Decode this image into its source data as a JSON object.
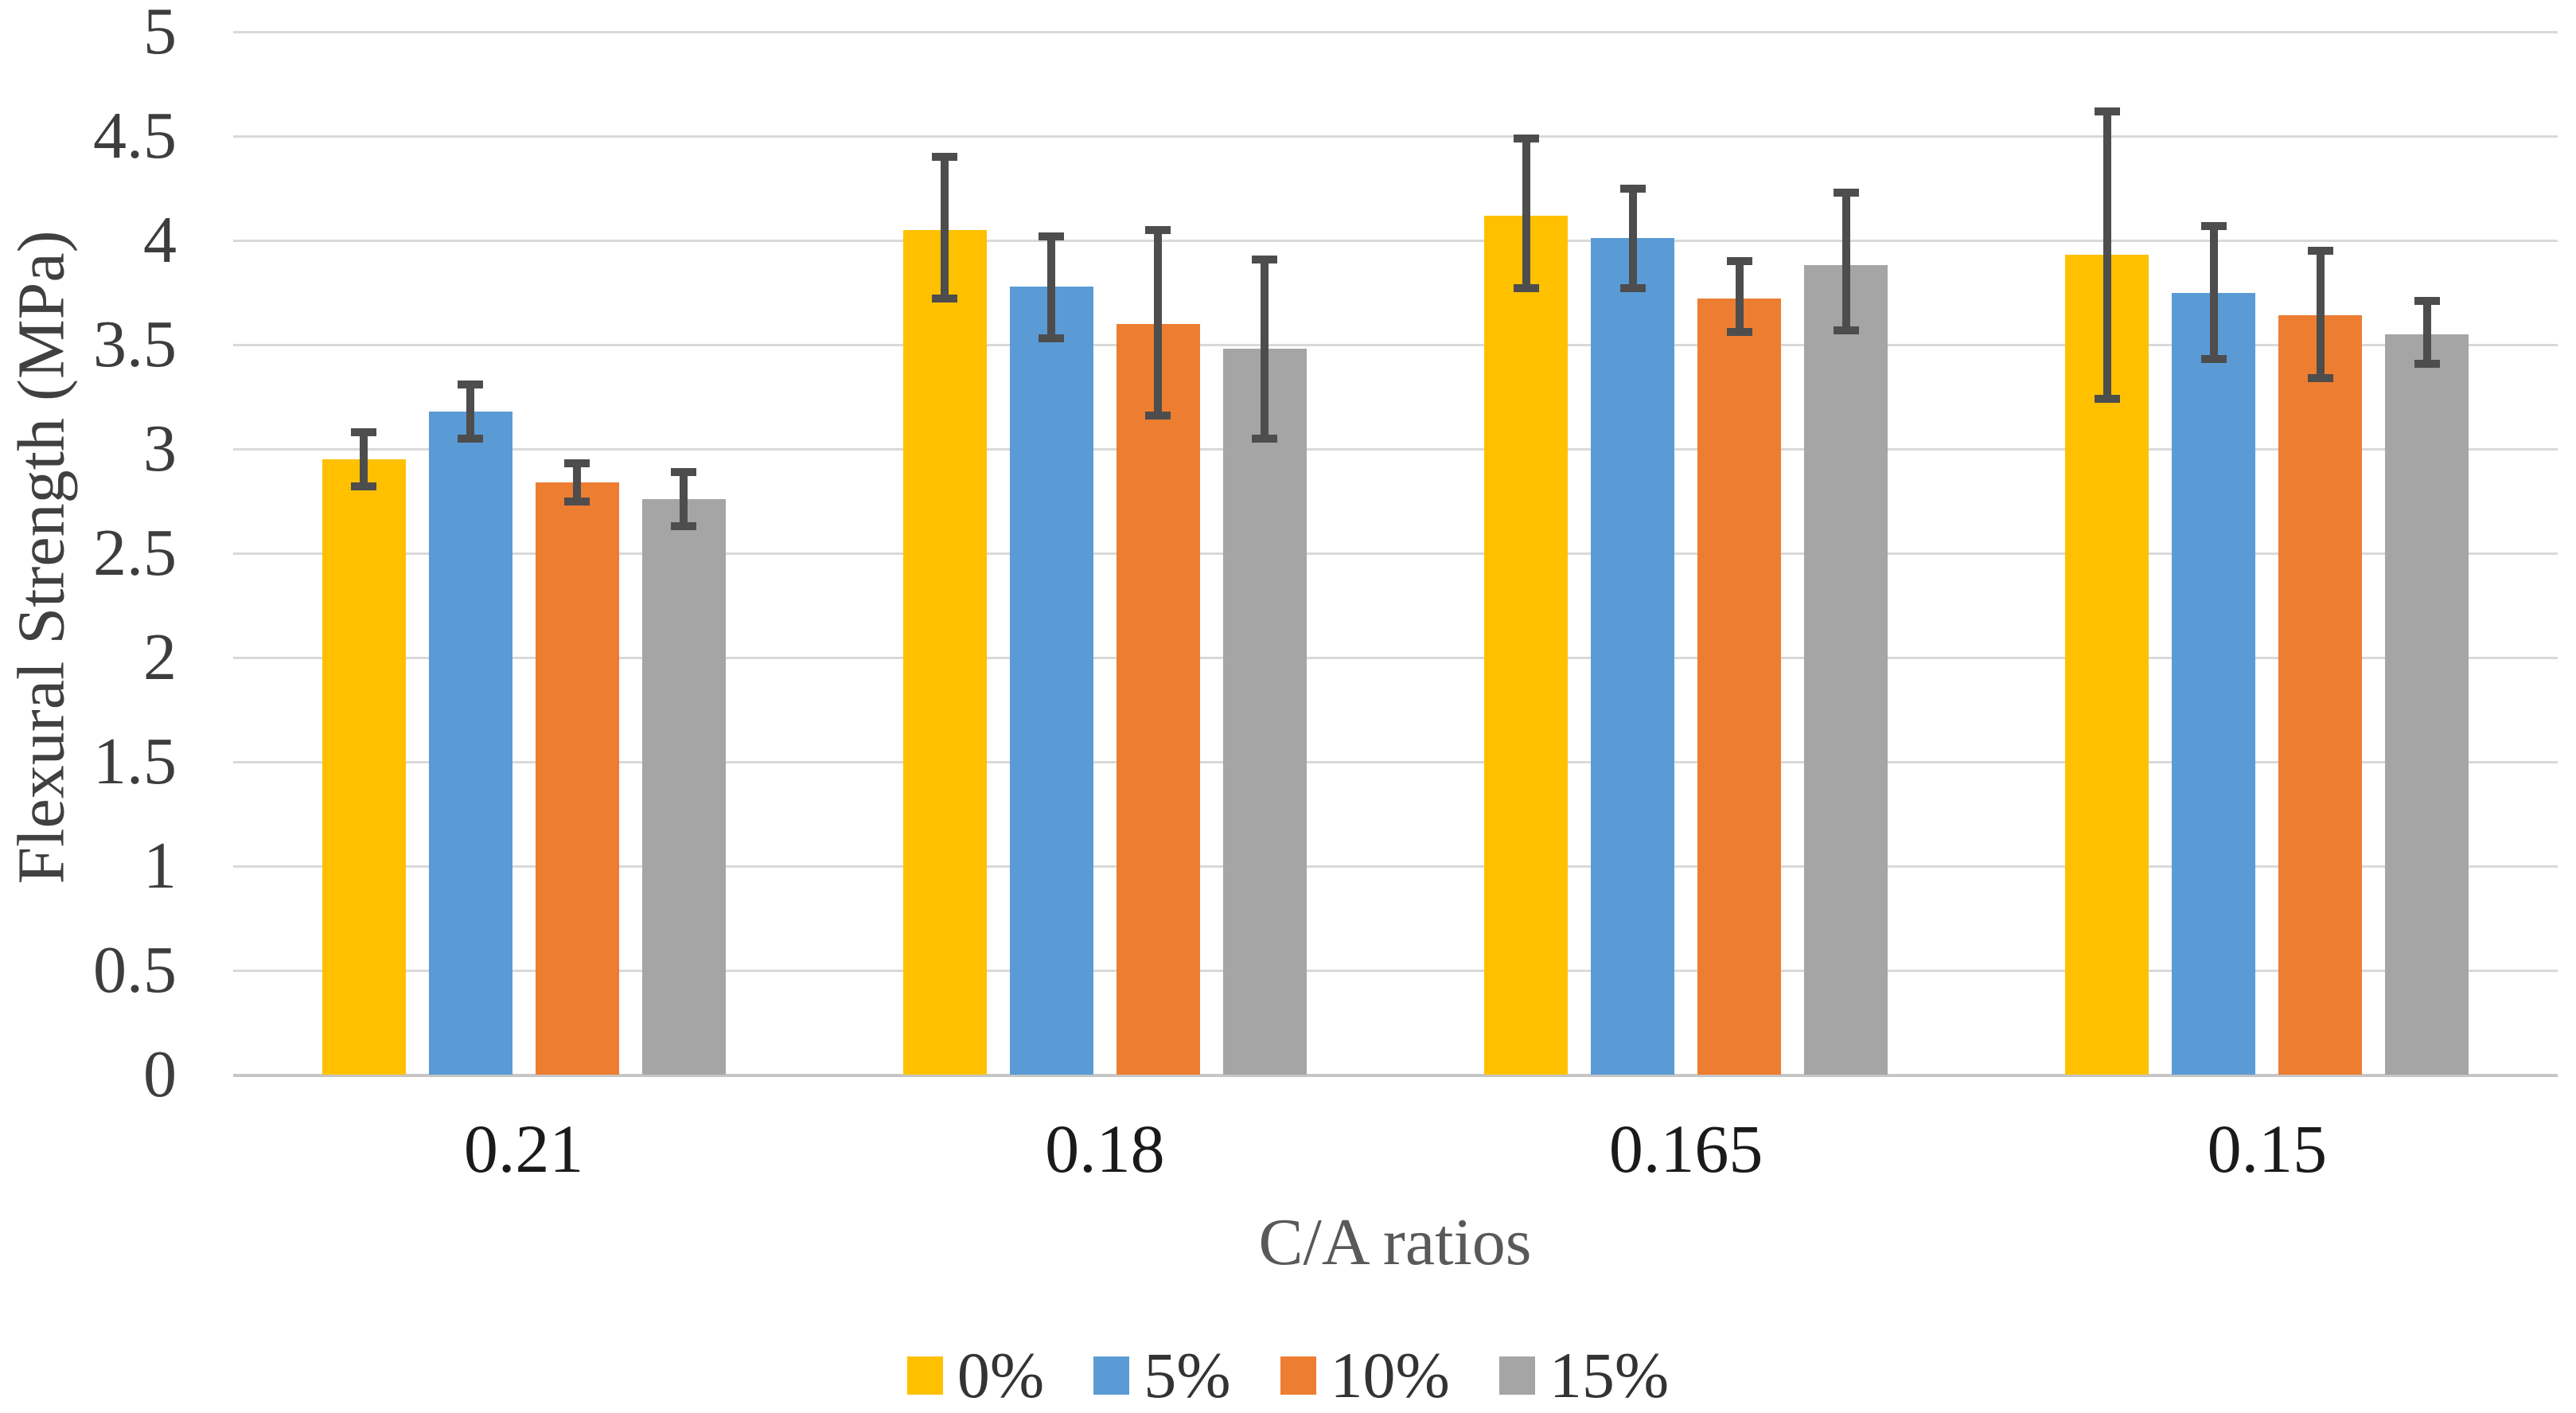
{
  "chart_data": {
    "type": "bar",
    "title": "",
    "xlabel": "C/A ratios",
    "ylabel": "Flexural Strength (MPa)",
    "categories": [
      "0.21",
      "0.18",
      "0.165",
      "0.15"
    ],
    "series": [
      {
        "name": "0%",
        "color": "#FFC000",
        "values": [
          2.95,
          4.05,
          4.12,
          3.93
        ],
        "err_low": [
          2.82,
          3.72,
          3.77,
          3.24
        ],
        "err_high": [
          3.08,
          4.4,
          4.49,
          4.62
        ]
      },
      {
        "name": "5%",
        "color": "#5B9BD5",
        "values": [
          3.18,
          3.78,
          4.01,
          3.75
        ],
        "err_low": [
          3.05,
          3.53,
          3.77,
          3.43
        ],
        "err_high": [
          3.31,
          4.02,
          4.25,
          4.07
        ]
      },
      {
        "name": "10%",
        "color": "#ED7D31",
        "values": [
          2.84,
          3.6,
          3.72,
          3.64
        ],
        "err_low": [
          2.75,
          3.16,
          3.56,
          3.34
        ],
        "err_high": [
          2.93,
          4.05,
          3.9,
          3.95
        ]
      },
      {
        "name": "15%",
        "color": "#A5A5A5",
        "values": [
          2.76,
          3.48,
          3.88,
          3.55
        ],
        "err_low": [
          2.63,
          3.05,
          3.57,
          3.41
        ],
        "err_high": [
          2.89,
          3.91,
          4.23,
          3.71
        ]
      }
    ],
    "ylim": [
      0,
      5
    ],
    "yticks": [
      "0",
      "0.5",
      "1",
      "1.5",
      "2",
      "2.5",
      "3",
      "3.5",
      "4",
      "4.5",
      "5"
    ],
    "grid": true,
    "legend_position": "bottom",
    "error_bars": true,
    "colors": {
      "gridline": "#d9d9d9",
      "baseline": "#c6c6c6",
      "error_bar": "#4d4d4d",
      "tick_text": "#3d3d3d",
      "axis_title_text": "#595959"
    }
  }
}
